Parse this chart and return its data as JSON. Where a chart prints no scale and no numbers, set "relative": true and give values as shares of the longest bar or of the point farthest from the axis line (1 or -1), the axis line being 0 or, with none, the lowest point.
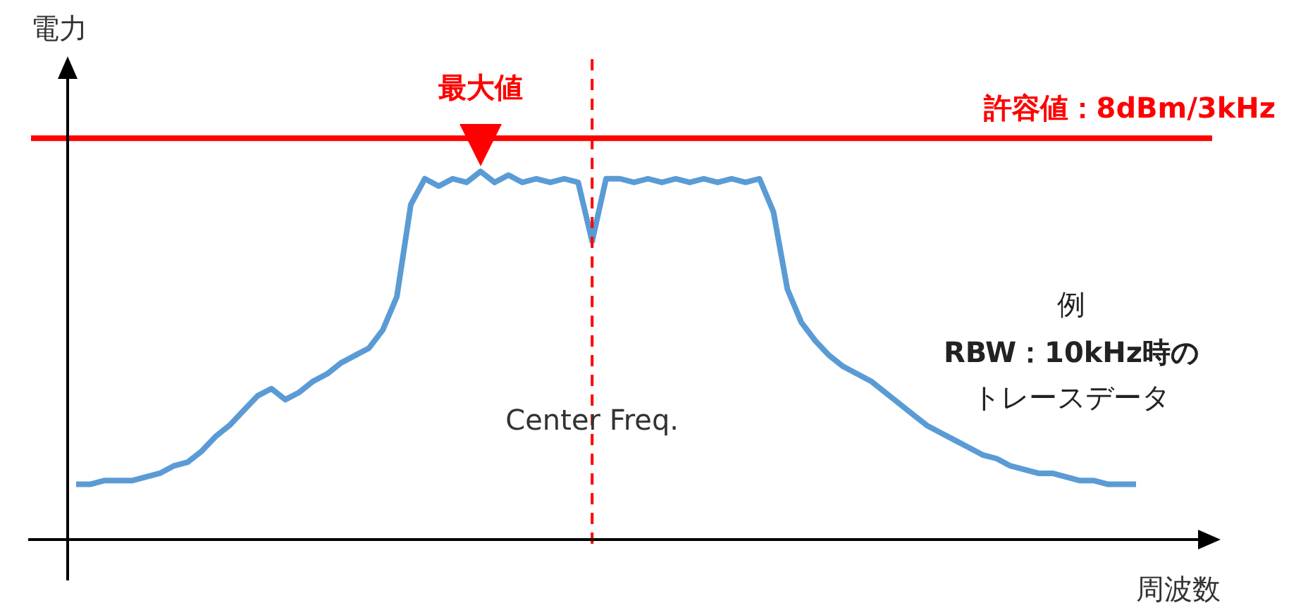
{
  "chart_data": {
    "type": "line",
    "relative": true,
    "ylabel": "電力",
    "xlabel": "周波数",
    "categories": [
      null,
      null,
      null,
      null,
      null,
      null,
      null,
      null,
      null,
      null,
      null,
      null,
      null,
      null,
      null,
      null,
      null,
      null,
      null,
      null,
      null,
      null,
      null,
      null,
      null,
      null,
      null,
      null,
      null,
      null,
      null,
      null,
      null,
      null,
      null,
      null,
      null,
      null,
      null,
      null,
      null,
      null,
      null,
      null,
      null,
      null,
      null,
      null,
      null,
      null,
      null,
      null,
      null,
      null,
      null,
      null,
      null,
      null,
      null,
      null,
      null,
      null,
      null,
      null,
      null,
      null,
      null,
      null,
      null,
      null,
      null,
      null,
      null,
      null,
      null,
      null,
      null
    ],
    "series": [
      {
        "color": "#5b9bd5",
        "values": [
          0.15,
          0.15,
          0.16,
          0.16,
          0.16,
          0.17,
          0.18,
          0.2,
          0.21,
          0.24,
          0.28,
          0.31,
          0.35,
          0.39,
          0.41,
          0.38,
          0.4,
          0.43,
          0.45,
          0.48,
          0.5,
          0.52,
          0.57,
          0.66,
          0.91,
          0.98,
          0.96,
          0.98,
          0.97,
          1,
          0.97,
          0.99,
          0.97,
          0.98,
          0.97,
          0.98,
          0.97,
          0.81,
          0.98,
          0.98,
          0.97,
          0.98,
          0.97,
          0.98,
          0.97,
          0.98,
          0.97,
          0.98,
          0.97,
          0.98,
          0.89,
          0.68,
          0.59,
          0.54,
          0.5,
          0.47,
          0.45,
          0.43,
          0.4,
          0.37,
          0.34,
          0.31,
          0.29,
          0.27,
          0.25,
          0.23,
          0.22,
          0.2,
          0.19,
          0.18,
          0.18,
          0.17,
          0.16,
          0.16,
          0.15,
          0.15,
          0.15
        ]
      }
    ],
    "ref_lines": [
      {
        "axis": "y",
        "value": 1.09,
        "label": "許容値：8dBm/3kHz",
        "color": "#ff0000",
        "line_style": "solid"
      }
    ],
    "annotations": [
      {
        "text": "最大値",
        "y": 1
      },
      "Center Freq.",
      "例",
      "RBW：10kHz時の",
      "トレースデータ"
    ],
    "legend": false,
    "marker": "none",
    "line_style": "solid"
  }
}
